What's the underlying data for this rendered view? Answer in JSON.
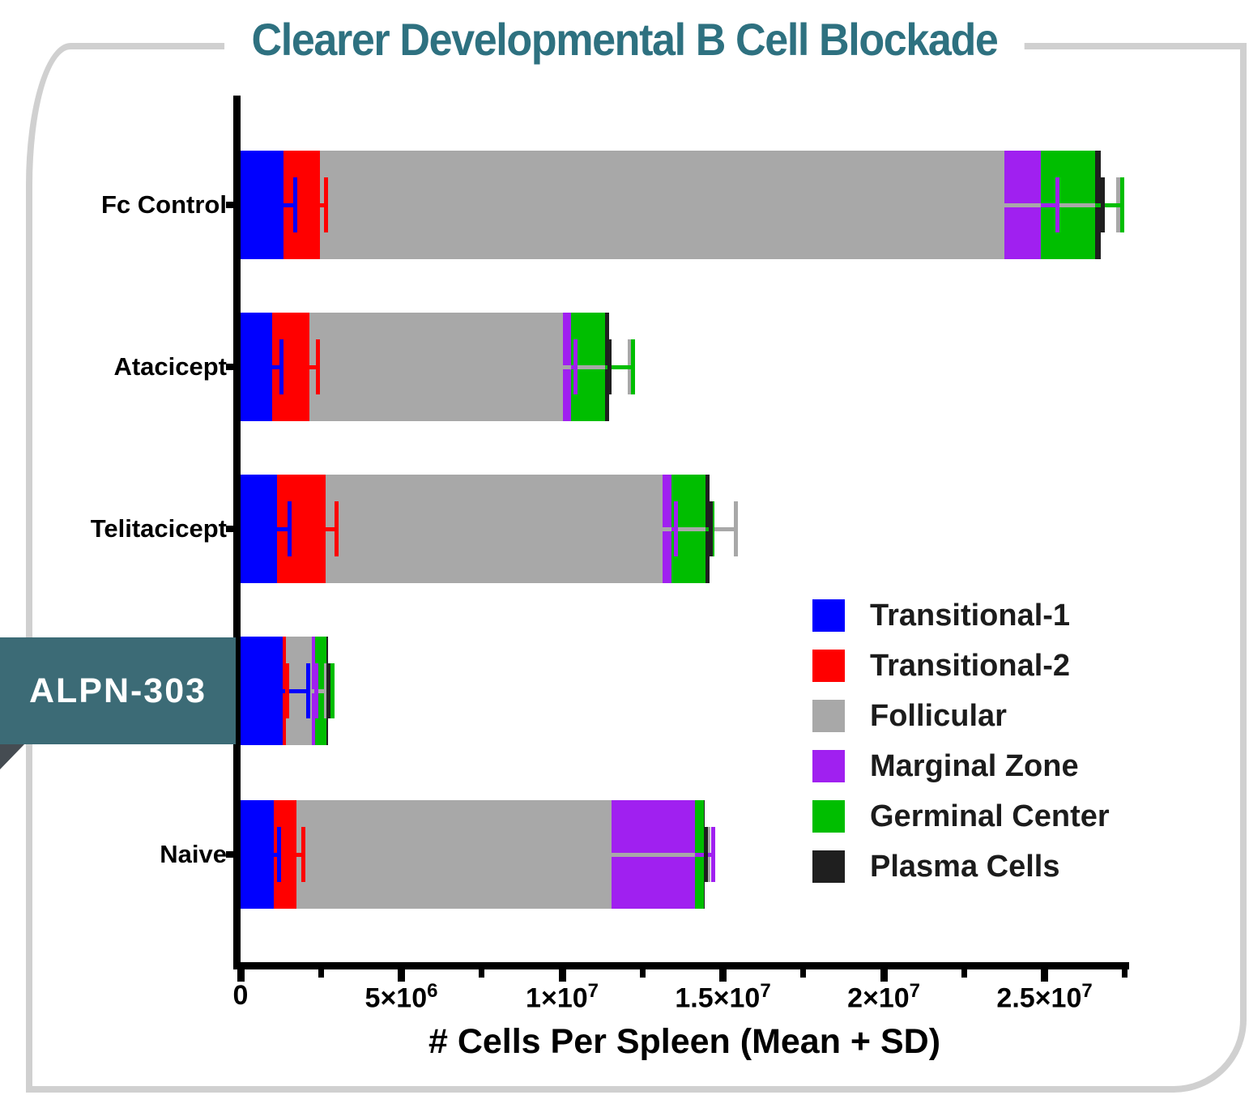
{
  "title": "Clearer Developmental B Cell Blockade",
  "callout": {
    "label": "ALPN-303",
    "category_index": 3
  },
  "chart_data": {
    "type": "bar",
    "orientation": "horizontal",
    "stacked": true,
    "title": "Clearer Developmental B Cell Blockade",
    "xlabel": "# Cells Per Spleen (Mean + SD)",
    "ylabel": "",
    "grid": false,
    "legend_position": "right-middle",
    "error_bars": "one-sided mean+SD whisker at each segment cumulative end",
    "xlim": [
      0,
      27630000
    ],
    "categories": [
      "Fc Control",
      "Atacicept",
      "Telitacicept",
      "ALPN-303",
      "Naive"
    ],
    "series": [
      {
        "name": "Transitional-1",
        "color": "#0000FF",
        "values": [
          1340000,
          980000,
          1130000,
          1320000,
          1030000
        ],
        "sd": [
          350000,
          270000,
          380000,
          770000,
          150000
        ]
      },
      {
        "name": "Transitional-2",
        "color": "#FF0000",
        "values": [
          1130000,
          1150000,
          1510000,
          90000,
          700000
        ],
        "sd": [
          170000,
          260000,
          330000,
          30000,
          200000
        ]
      },
      {
        "name": "Follicular",
        "color": "#A8A8A8",
        "values": [
          21280000,
          7900000,
          10470000,
          810000,
          9810000
        ],
        "sd": [
          3530000,
          2070000,
          2280000,
          420000,
          2990000
        ]
      },
      {
        "name": "Marginal Zone",
        "color": "#A020F0",
        "values": [
          1140000,
          250000,
          300000,
          100000,
          2600000
        ],
        "sd": [
          490000,
          120000,
          120000,
          20000,
          540000
        ]
      },
      {
        "name": "Germinal Center",
        "color": "#00BE00",
        "values": [
          1680000,
          1050000,
          1050000,
          360000,
          270000
        ],
        "sd": [
          840000,
          860000,
          200000,
          170000,
          50000
        ]
      },
      {
        "name": "Plasma Cells",
        "color": "#1F1F1F",
        "values": [
          190000,
          120000,
          120000,
          30000,
          30000
        ],
        "sd": [
          40000,
          20000,
          20000,
          10000,
          10000
        ]
      }
    ],
    "x_major_ticks": [
      {
        "value": 0,
        "base": "0",
        "exp": ""
      },
      {
        "value": 5000000,
        "base": "5×10",
        "exp": "6"
      },
      {
        "value": 10000000,
        "base": "1×10",
        "exp": "7"
      },
      {
        "value": 15000000,
        "base": "1.5×10",
        "exp": "7"
      },
      {
        "value": 20000000,
        "base": "2×10",
        "exp": "7"
      },
      {
        "value": 25000000,
        "base": "2.5×10",
        "exp": "7"
      }
    ],
    "x_minor_ticks": [
      2500000,
      7500000,
      12500000,
      17500000,
      22500000,
      27500000
    ]
  },
  "ui": {
    "background": "#FFFFFF",
    "title_color": "#2E7180",
    "panel_border_color": "#D0D0D0",
    "banner_bg": "#3C6B76",
    "banner_fold_color": "#454C52",
    "axis_color": "#000000",
    "legend_text_color": "#1C1C1C"
  }
}
